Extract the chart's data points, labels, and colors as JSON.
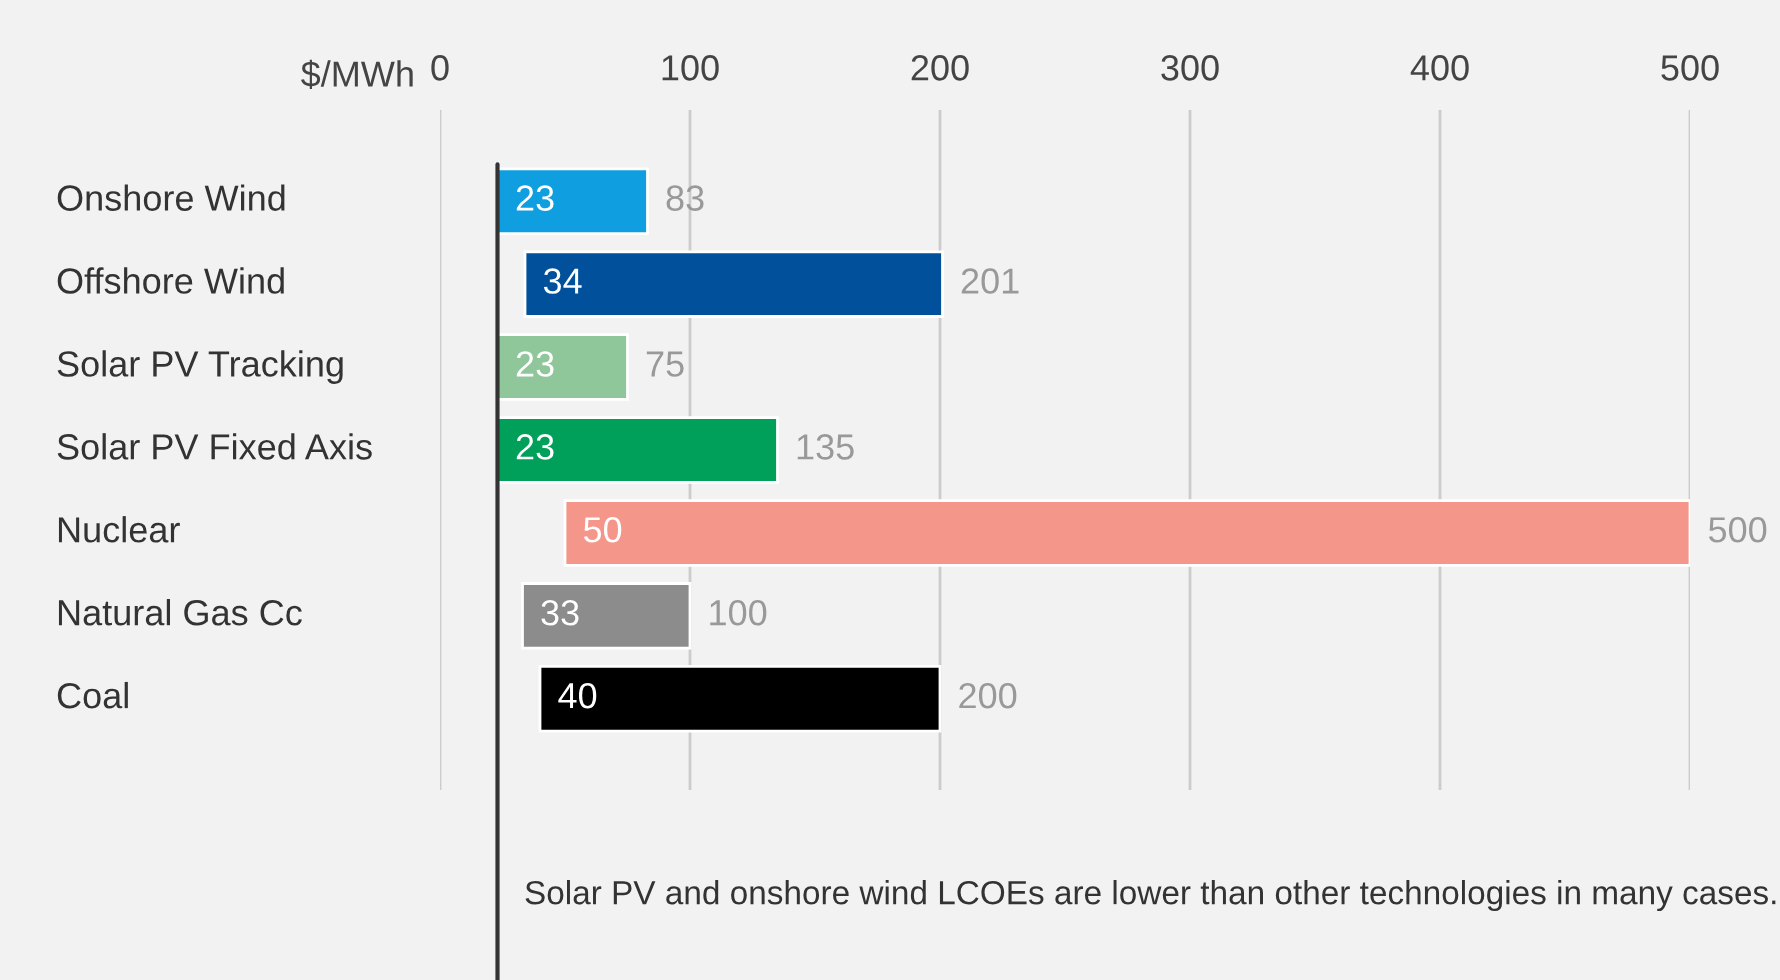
{
  "chart_data": {
    "type": "bar",
    "orientation": "horizontal",
    "xlabel": "$/MWh",
    "categories": [
      "Onshore Wind",
      "Offshore Wind",
      "Solar PV Tracking",
      "Solar PV Fixed Axis",
      "Nuclear",
      "Natural Gas Cc",
      "Coal"
    ],
    "base": [
      23,
      34,
      23,
      23,
      50,
      33,
      40
    ],
    "values": [
      60,
      167,
      52,
      112,
      450,
      67,
      160
    ],
    "colors": [
      "#0f9ee0",
      "#00509b",
      "#8fc79a",
      "#00a05a",
      "#f4978a",
      "#8c8c8c",
      "#000000"
    ],
    "value_labels": [
      "83",
      "201",
      "75",
      "135",
      "500",
      "100",
      "200"
    ],
    "xlim": [
      0,
      500
    ],
    "xticks": [
      0,
      100,
      200,
      300,
      400,
      500
    ],
    "grid": "x",
    "ref_lines": [
      {
        "axis": "x",
        "value": 23,
        "color": "#333333"
      }
    ],
    "annotations": [
      {
        "text": "23",
        "x": 23,
        "y": "Onshore Wind"
      },
      {
        "text": "34",
        "x": 34,
        "y": "Offshore Wind"
      },
      {
        "text": "23",
        "x": 23,
        "y": "Solar PV Tracking"
      },
      {
        "text": "23",
        "x": 23,
        "y": "Solar PV Fixed Axis"
      },
      {
        "text": "50",
        "x": 50,
        "y": "Nuclear"
      },
      {
        "text": "33",
        "x": 33,
        "y": "Natural Gas Cc"
      },
      {
        "text": "40",
        "x": 40,
        "y": "Coal"
      },
      "Solar PV and onshore wind LCOEs are lower than other technologies in many cases."
    ]
  }
}
